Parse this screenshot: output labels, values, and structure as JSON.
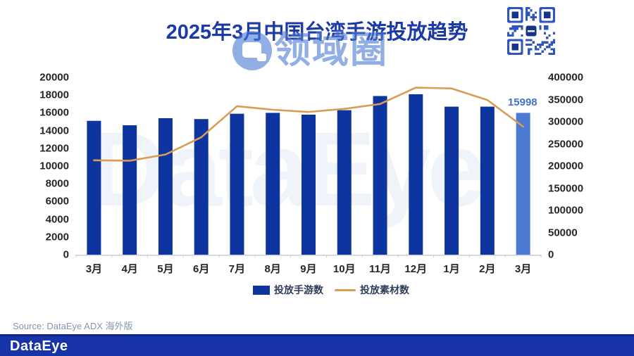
{
  "title": "2025年3月中国台湾手游投放趋势",
  "watermark": {
    "text": "领域圈"
  },
  "background_watermark": "DataEye",
  "source": "Source: DataEye ADX 海外版",
  "footer_logo": "DataEye",
  "colors": {
    "bar": "#0E34A0",
    "bar_highlight": "#4C79D2",
    "line": "#D89C55",
    "title": "#1B3AA6",
    "callout": "#4472C4",
    "axis_text": "#262626",
    "footer_bg": "#1634A8",
    "qr_blue": "#2F55BE",
    "qr_logo": "#16348C",
    "baseline": "#C9CDD6"
  },
  "legend": {
    "items": [
      {
        "label": "投放手游数",
        "type": "bar"
      },
      {
        "label": "投放素材数",
        "type": "line"
      }
    ]
  },
  "chart_data": {
    "type": "bar",
    "subtype": "combo-bar-line",
    "categories": [
      "3月",
      "4月",
      "5月",
      "6月",
      "7月",
      "8月",
      "9月",
      "10月",
      "11月",
      "12月",
      "1月",
      "2月",
      "3月"
    ],
    "series": [
      {
        "name": "投放手游数",
        "kind": "bar",
        "axis": "left",
        "values": [
          15100,
          14600,
          15400,
          15300,
          15900,
          16000,
          15800,
          16300,
          17900,
          18100,
          16700,
          16700,
          15998
        ]
      },
      {
        "name": "投放素材数",
        "kind": "line",
        "axis": "right",
        "values": [
          213000,
          212000,
          226000,
          265000,
          335000,
          327000,
          322000,
          329000,
          340000,
          377000,
          375000,
          349000,
          289000
        ]
      }
    ],
    "left_axis": {
      "min": 0,
      "max": 20000,
      "ticks": [
        0,
        2000,
        4000,
        6000,
        8000,
        10000,
        12000,
        14000,
        16000,
        18000,
        20000
      ]
    },
    "right_axis": {
      "min": 0,
      "max": 400000,
      "ticks": [
        0,
        50000,
        100000,
        150000,
        200000,
        250000,
        300000,
        350000,
        400000
      ]
    },
    "grid": false,
    "legend_position": "bottom",
    "highlight_last_bar": true,
    "annotations": [
      {
        "text": "15998",
        "category_index": 12,
        "series": "投放手游数"
      }
    ]
  }
}
